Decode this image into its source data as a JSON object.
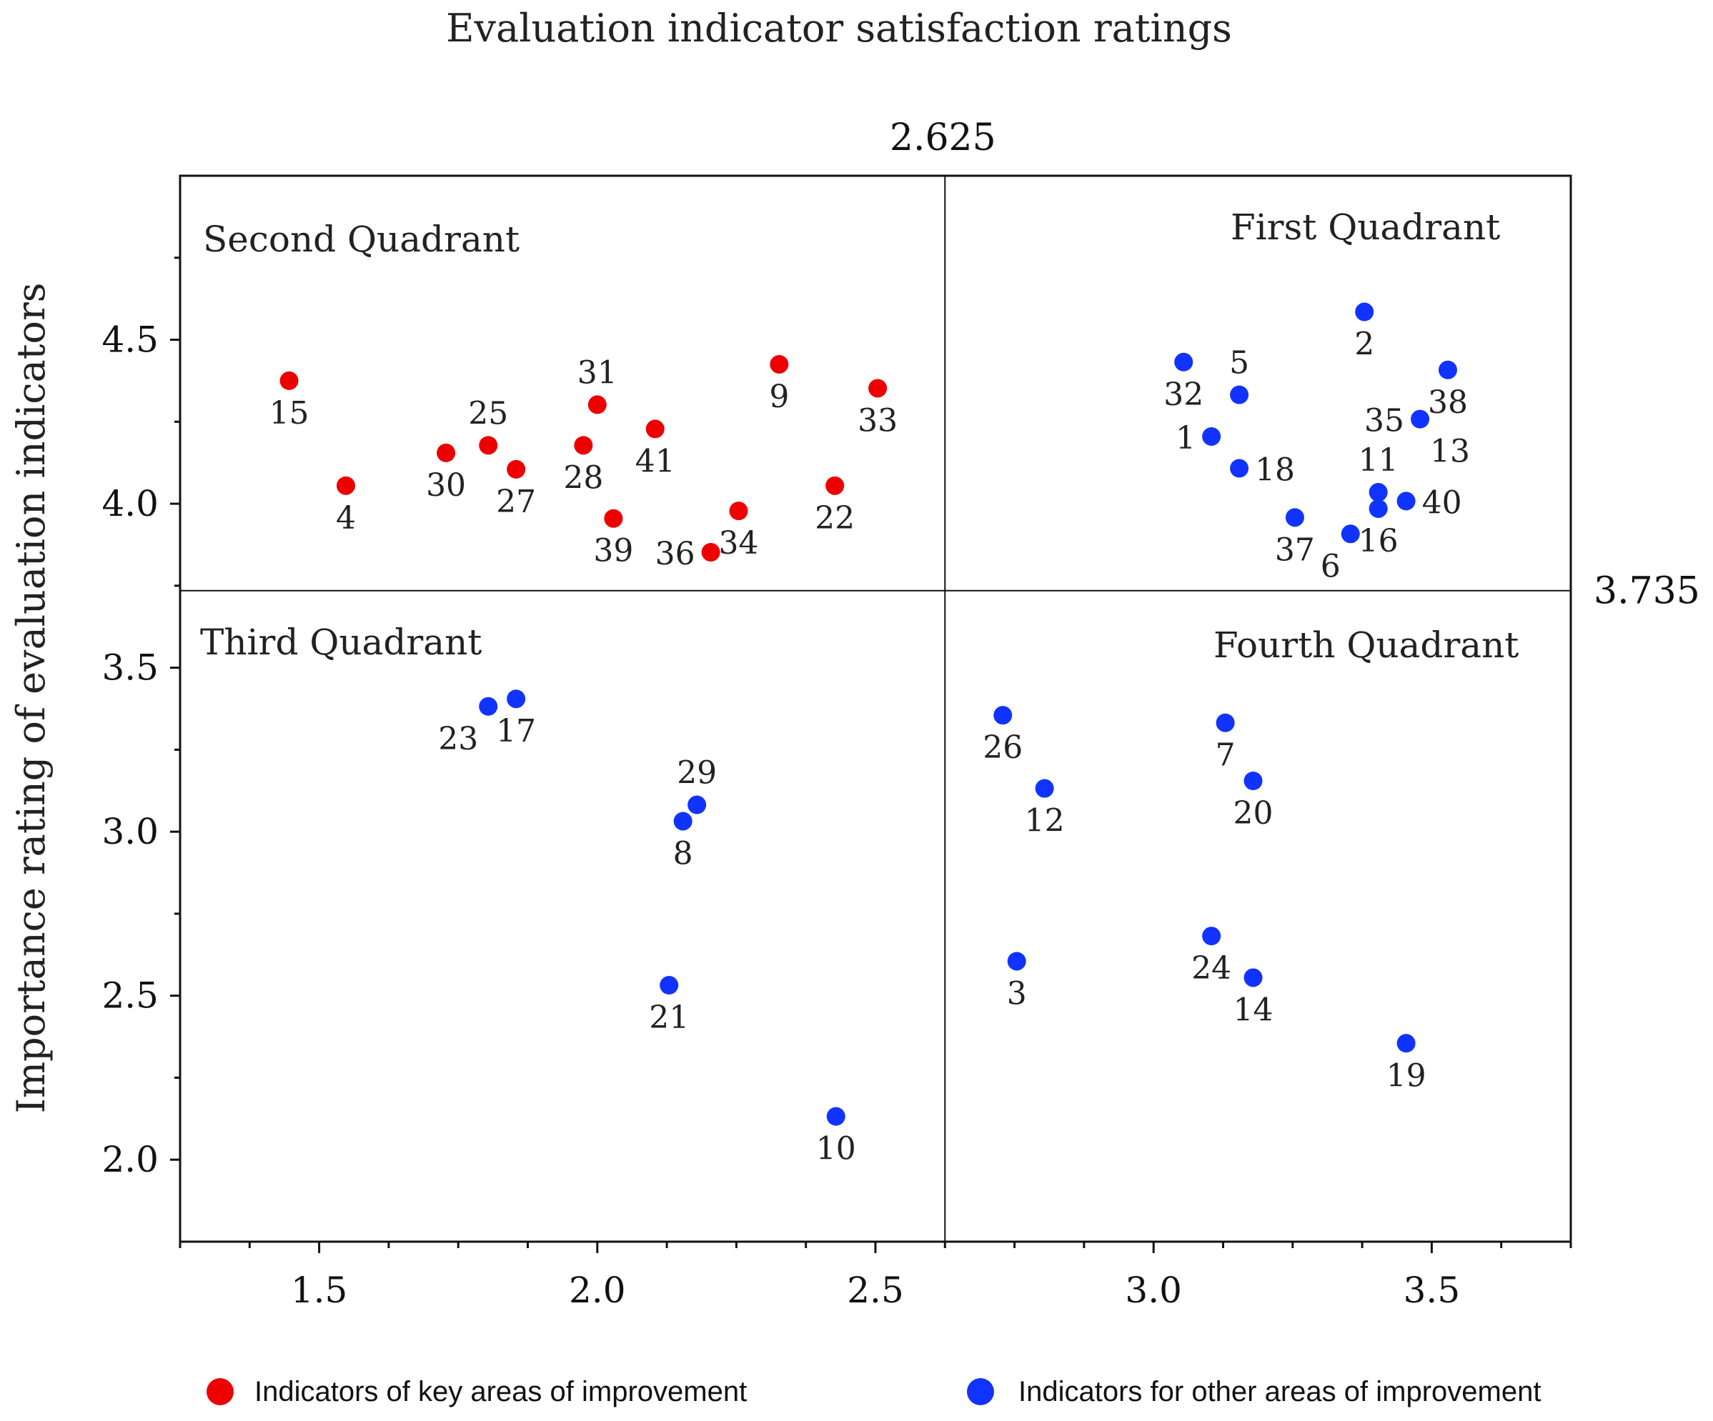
{
  "chart_data": {
    "type": "scatter",
    "title": "Evaluation indicator satisfaction ratings",
    "xlabel": "",
    "ylabel": "Importance rating of evaluation indicators",
    "xlim": [
      1.25,
      3.75
    ],
    "ylim": [
      1.75,
      5.0
    ],
    "xticks": [
      "1.5",
      "2.0",
      "2.5",
      "3.0",
      "3.5"
    ],
    "yticks": [
      "2.0",
      "2.5",
      "3.0",
      "3.5",
      "4.0",
      "4.5"
    ],
    "xtick_values": [
      1.5,
      2.0,
      2.5,
      3.0,
      3.5
    ],
    "ytick_values": [
      2.0,
      2.5,
      3.0,
      3.5,
      4.0,
      4.5
    ],
    "divider_x": 2.625,
    "divider_y": 3.735,
    "divider_x_label": "2.625",
    "divider_y_label": "3.735",
    "quadrant_labels": {
      "first": "First Quadrant",
      "second": "Second Quadrant",
      "third": "Third Quadrant",
      "fourth": "Fourth Quadrant"
    },
    "legend_position": "bottom",
    "series": [
      {
        "name": "Indicators of key areas of improvement",
        "color": "#ee0000",
        "points": [
          {
            "id": "15",
            "x": 1.446,
            "y": 4.375,
            "lp": "below"
          },
          {
            "id": "4",
            "x": 1.548,
            "y": 4.055,
            "lp": "below"
          },
          {
            "id": "30",
            "x": 1.728,
            "y": 4.155,
            "lp": "below"
          },
          {
            "id": "25",
            "x": 1.804,
            "y": 4.178,
            "lp": "above"
          },
          {
            "id": "27",
            "x": 1.854,
            "y": 4.105,
            "lp": "below"
          },
          {
            "id": "28",
            "x": 1.975,
            "y": 4.178,
            "lp": "below"
          },
          {
            "id": "31",
            "x": 2.0,
            "y": 4.302,
            "lp": "above"
          },
          {
            "id": "39",
            "x": 2.029,
            "y": 3.955,
            "lp": "below"
          },
          {
            "id": "41",
            "x": 2.104,
            "y": 4.228,
            "lp": "below"
          },
          {
            "id": "36",
            "x": 2.204,
            "y": 3.852,
            "lp": "left"
          },
          {
            "id": "34",
            "x": 2.254,
            "y": 3.978,
            "lp": "below"
          },
          {
            "id": "9",
            "x": 2.327,
            "y": 4.425,
            "lp": "below"
          },
          {
            "id": "22",
            "x": 2.427,
            "y": 4.055,
            "lp": "below"
          },
          {
            "id": "33",
            "x": 2.504,
            "y": 4.352,
            "lp": "below"
          }
        ]
      },
      {
        "name": "Indicators for other areas of improvement",
        "color": "#1133ff",
        "points": [
          {
            "id": "23",
            "x": 1.804,
            "y": 3.382,
            "lp": "below-left"
          },
          {
            "id": "17",
            "x": 1.854,
            "y": 3.405,
            "lp": "below"
          },
          {
            "id": "29",
            "x": 2.179,
            "y": 3.082,
            "lp": "above"
          },
          {
            "id": "8",
            "x": 2.154,
            "y": 3.032,
            "lp": "below"
          },
          {
            "id": "21",
            "x": 2.129,
            "y": 2.532,
            "lp": "below"
          },
          {
            "id": "10",
            "x": 2.429,
            "y": 2.132,
            "lp": "below"
          },
          {
            "id": "26",
            "x": 2.729,
            "y": 3.355,
            "lp": "below"
          },
          {
            "id": "12",
            "x": 2.804,
            "y": 3.132,
            "lp": "below"
          },
          {
            "id": "3",
            "x": 2.754,
            "y": 2.605,
            "lp": "below"
          },
          {
            "id": "7",
            "x": 3.129,
            "y": 3.332,
            "lp": "below"
          },
          {
            "id": "20",
            "x": 3.179,
            "y": 3.155,
            "lp": "below"
          },
          {
            "id": "24",
            "x": 3.104,
            "y": 2.682,
            "lp": "below"
          },
          {
            "id": "14",
            "x": 3.179,
            "y": 2.555,
            "lp": "below"
          },
          {
            "id": "19",
            "x": 3.454,
            "y": 2.355,
            "lp": "below"
          },
          {
            "id": "32",
            "x": 3.054,
            "y": 4.432,
            "lp": "below"
          },
          {
            "id": "5",
            "x": 3.154,
            "y": 4.332,
            "lp": "above"
          },
          {
            "id": "1",
            "x": 3.104,
            "y": 4.205,
            "lp": "left"
          },
          {
            "id": "18",
            "x": 3.154,
            "y": 4.108,
            "lp": "right"
          },
          {
            "id": "37",
            "x": 3.254,
            "y": 3.958,
            "lp": "below"
          },
          {
            "id": "6",
            "x": 3.354,
            "y": 3.908,
            "lp": "below-left"
          },
          {
            "id": "16",
            "x": 3.404,
            "y": 3.985,
            "lp": "below"
          },
          {
            "id": "11",
            "x": 3.404,
            "y": 4.035,
            "lp": "above"
          },
          {
            "id": "40",
            "x": 3.454,
            "y": 4.008,
            "lp": "right"
          },
          {
            "id": "35",
            "x": 3.479,
            "y": 4.258,
            "lp": "left"
          },
          {
            "id": "13",
            "x": 3.479,
            "y": 4.258,
            "lp": "below-right"
          },
          {
            "id": "2",
            "x": 3.379,
            "y": 4.585,
            "lp": "below"
          },
          {
            "id": "38",
            "x": 3.529,
            "y": 4.408,
            "lp": "below"
          }
        ]
      }
    ]
  }
}
